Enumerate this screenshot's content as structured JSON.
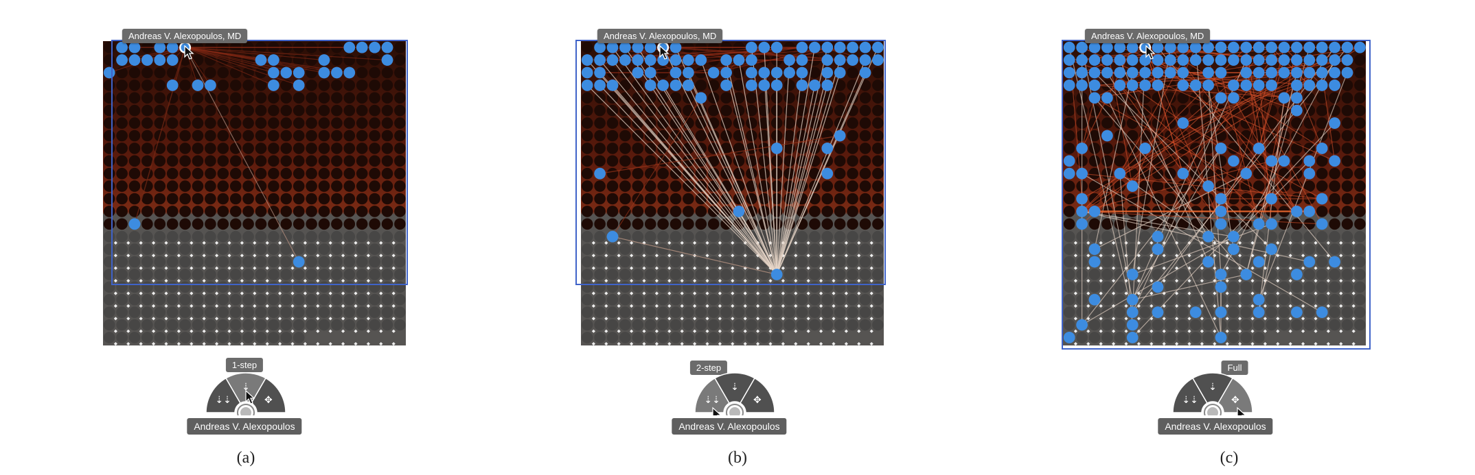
{
  "colors": {
    "selected_node": "#3d8ce0",
    "selection_box": "#3f63c9",
    "tooltip_bg": "#6b6b6b",
    "dark_node": "#1e0a05",
    "grey_node": "#474645"
  },
  "panels": [
    {
      "id": "a",
      "node_tooltip": "Andreas V. Alexopoulos, MD",
      "menu_tooltip": "1-step",
      "name_pill": "Andreas V. Alexopoulos",
      "caption": "(a)",
      "menu_items": [
        {
          "name": "two-step-expand-icon",
          "glyph": "⇣⇣",
          "active": false
        },
        {
          "name": "one-step-expand-icon",
          "glyph": "⇣",
          "active": true
        },
        {
          "name": "full-expand-icon",
          "glyph": "✥",
          "active": false
        }
      ]
    },
    {
      "id": "b",
      "node_tooltip": "Andreas V. Alexopoulos, MD",
      "menu_tooltip": "2-step",
      "name_pill": "Andreas V. Alexopoulos",
      "caption": "(b)",
      "menu_items": [
        {
          "name": "two-step-expand-icon",
          "glyph": "⇣⇣",
          "active": true
        },
        {
          "name": "one-step-expand-icon",
          "glyph": "⇣",
          "active": false
        },
        {
          "name": "full-expand-icon",
          "glyph": "✥",
          "active": false
        }
      ]
    },
    {
      "id": "c",
      "node_tooltip": "Andreas V. Alexopoulos, MD",
      "menu_tooltip": "Full",
      "name_pill": "Andreas V. Alexopoulos",
      "caption": "(c)",
      "menu_items": [
        {
          "name": "two-step-expand-icon",
          "glyph": "⇣⇣",
          "active": false
        },
        {
          "name": "one-step-expand-icon",
          "glyph": "⇣",
          "active": false
        },
        {
          "name": "full-expand-icon",
          "glyph": "✥",
          "active": true
        }
      ]
    }
  ]
}
